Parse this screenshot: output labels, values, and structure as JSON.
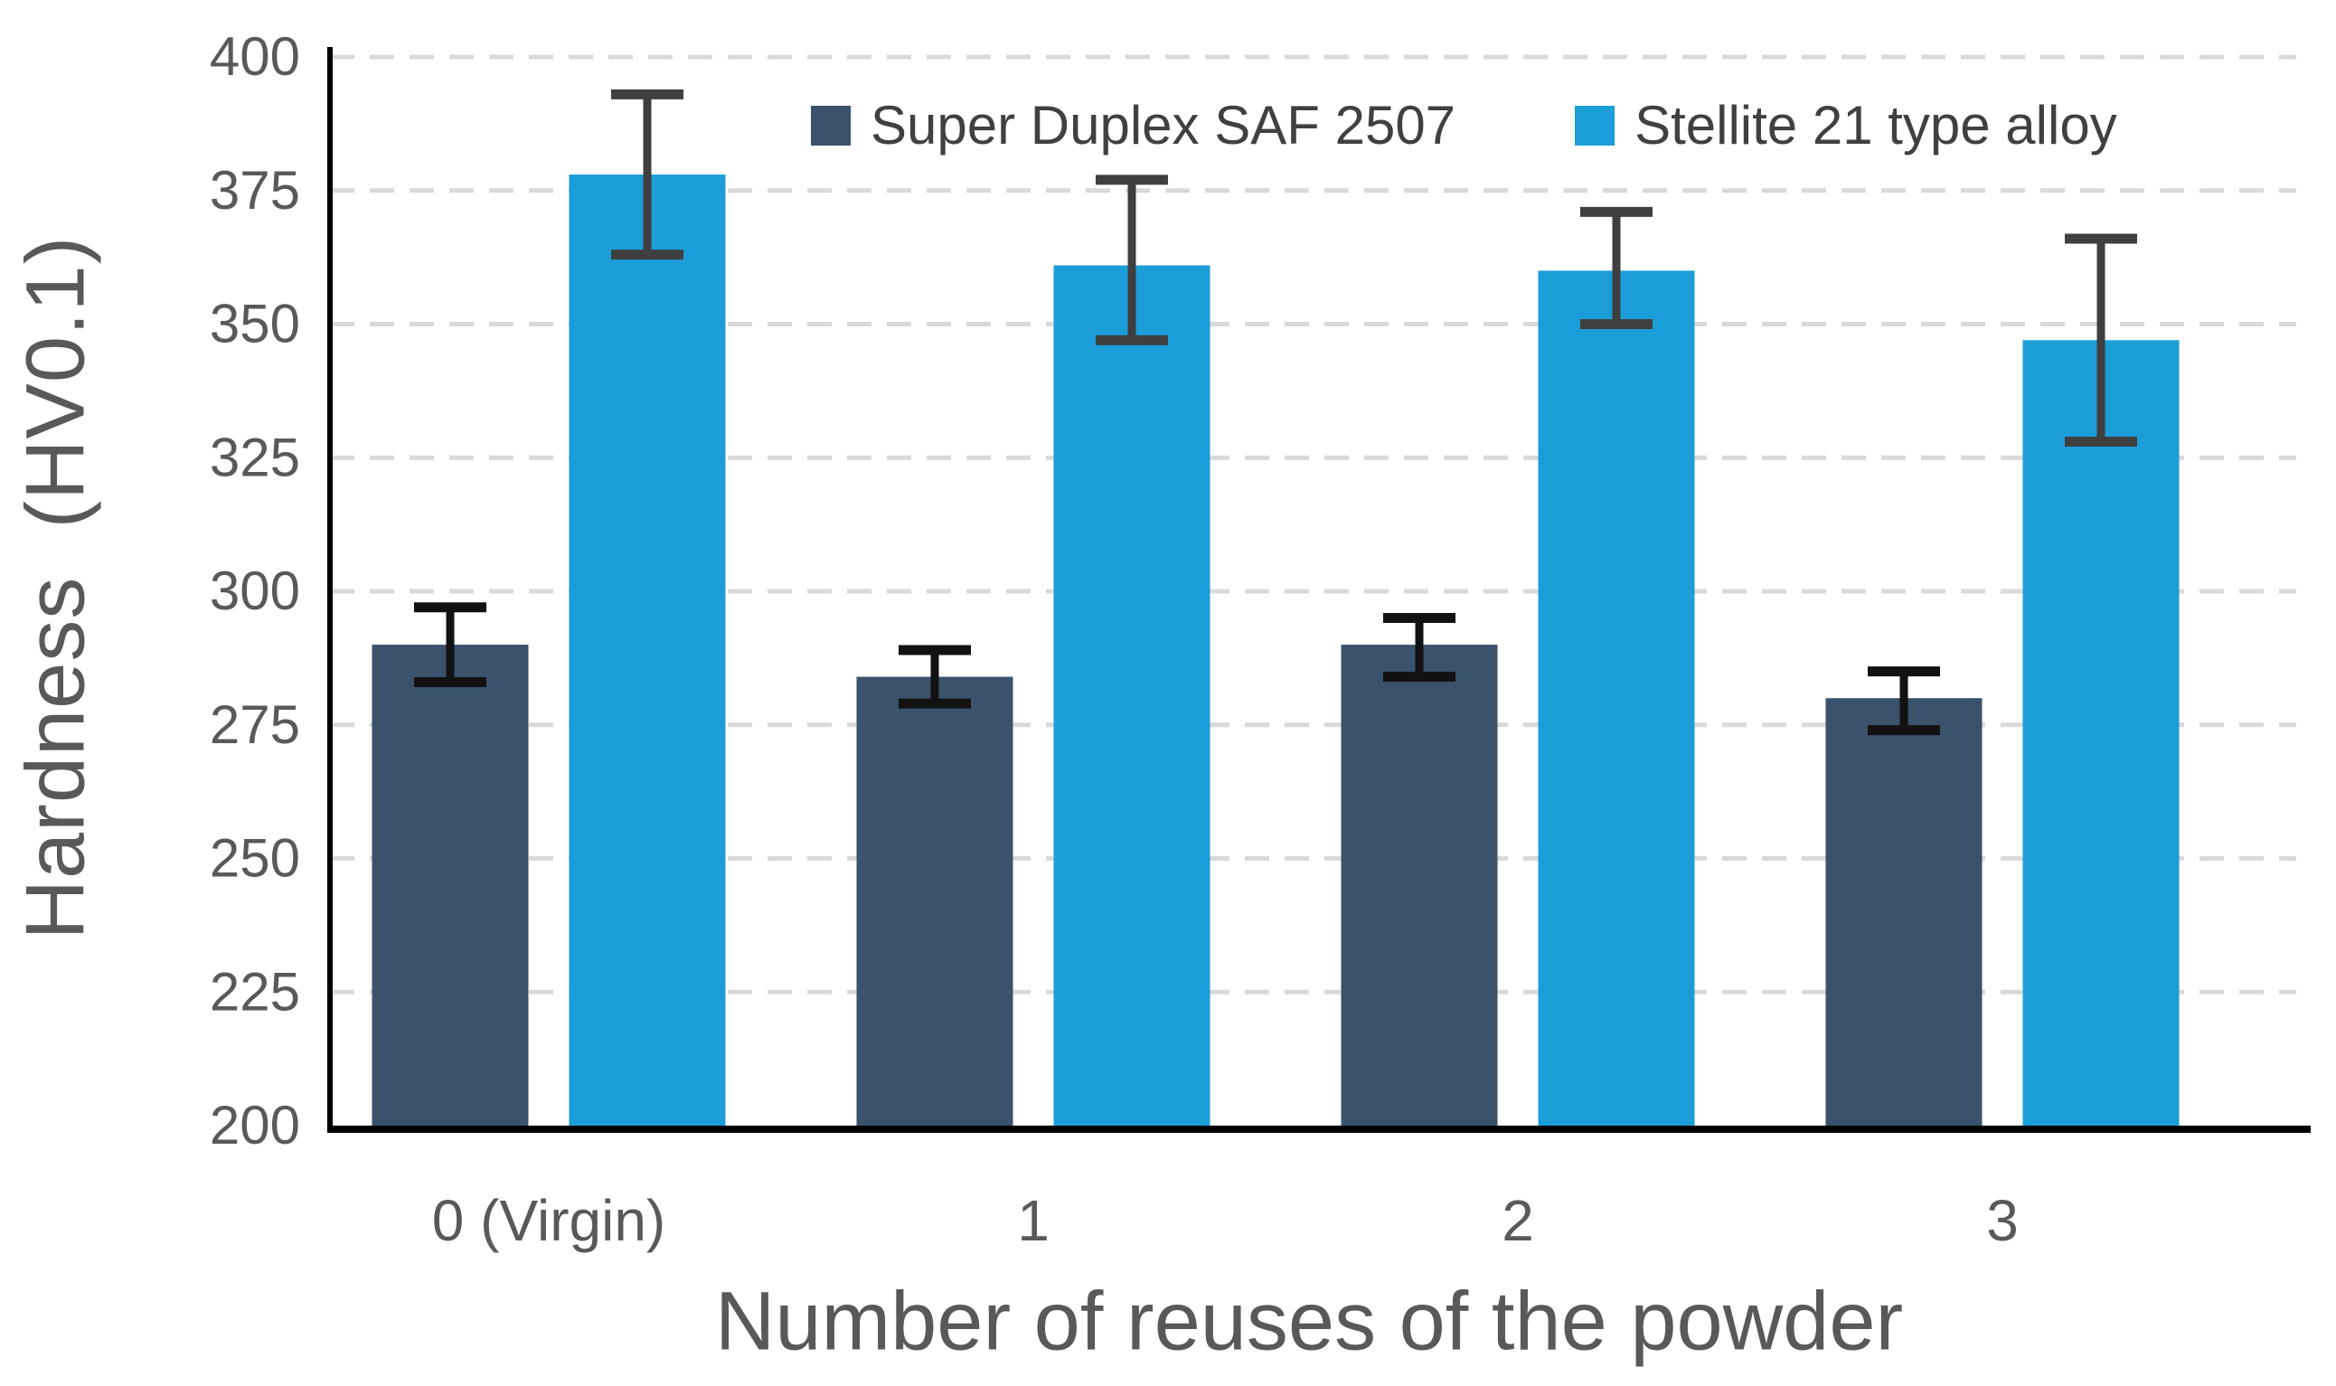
{
  "chart_data": {
    "type": "bar",
    "title": "",
    "categories": [
      "0 (Virgin)",
      "1",
      "2",
      "3"
    ],
    "series": [
      {
        "name": "Super Duplex SAF 2507",
        "color": "#3A526B",
        "error_color": "#121212",
        "values": [
          290,
          284,
          290,
          280
        ],
        "error_low": [
          283,
          279,
          284,
          274
        ],
        "error_high": [
          297,
          289,
          295,
          285
        ]
      },
      {
        "name": "Stellite 21 type alloy",
        "color": "#1B9DD8",
        "error_color": "#3F3F3F",
        "values": [
          378,
          361,
          360,
          347
        ],
        "error_low": [
          363,
          347,
          350,
          328
        ],
        "error_high": [
          393,
          377,
          371,
          366
        ]
      }
    ],
    "xlabel": "Number of reuses of the powder",
    "ylabel": "Hardness  (HV0.1)",
    "ylim": [
      200,
      400
    ],
    "ytick_step": 25,
    "yticks": [
      200,
      225,
      250,
      275,
      300,
      325,
      350,
      375,
      400
    ],
    "grid": "horizontal-dashed",
    "legend_position": "top-center",
    "colors": {
      "grid": "#D9D9D9",
      "axis": "#000000",
      "tick_text": "#595959",
      "title_text": "#595959",
      "legend_text": "#404040",
      "background": "#FFFFFF"
    }
  }
}
